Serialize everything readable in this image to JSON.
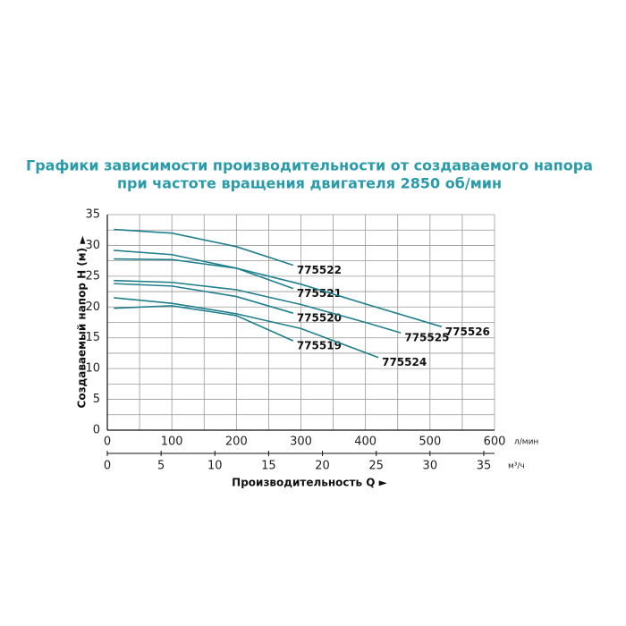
{
  "chart_data": {
    "type": "line",
    "title": "Графики зависимости производительности от создаваемого напора",
    "subtitle": "при частоте вращения двигателя 2850 об/мин",
    "y_label": "Создаваемый напор H (м) ►",
    "x_label": "Производительность Q ►",
    "x_unit": "л/мин",
    "x2_unit": "м³/ч",
    "xlim": [
      0,
      600
    ],
    "xticks": [
      0,
      100,
      200,
      300,
      400,
      500,
      600
    ],
    "x2lim": [
      0,
      36
    ],
    "x2ticks": [
      0,
      5,
      10,
      15,
      20,
      25,
      30,
      35
    ],
    "ylim": [
      0,
      35
    ],
    "yticks": [
      0,
      5,
      10,
      15,
      20,
      25,
      30,
      35
    ],
    "minor_xticks": [
      50,
      150,
      250,
      350,
      450,
      550
    ],
    "minor_yticks": [
      2.5,
      7.5,
      12.5,
      17.5,
      22.5,
      27.5,
      32.5
    ],
    "grid": true,
    "series": [
      {
        "name": "775522",
        "color": "#1f7f8c",
        "x": [
          10,
          100,
          200,
          288
        ],
        "values": [
          32.6,
          32,
          29.8,
          26.8
        ]
      },
      {
        "name": "775521",
        "color": "#1f7f8c",
        "x": [
          10,
          100,
          200,
          288
        ],
        "values": [
          29.2,
          28.5,
          26.3,
          23
        ]
      },
      {
        "name": "775520",
        "color": "#1f7f8c",
        "x": [
          10,
          100,
          200,
          288
        ],
        "values": [
          23.8,
          23.4,
          21.7,
          19
        ]
      },
      {
        "name": "775519",
        "color": "#1f7f8c",
        "x": [
          10,
          100,
          200,
          288
        ],
        "values": [
          19.8,
          20.2,
          18.6,
          14.5
        ]
      },
      {
        "name": "775526",
        "color": "#1f7f8c",
        "x": [
          10,
          100,
          200,
          300,
          400,
          518
        ],
        "values": [
          27.8,
          27.7,
          26.3,
          23.7,
          20.5,
          16.8
        ]
      },
      {
        "name": "775525",
        "color": "#1f7f8c",
        "x": [
          10,
          100,
          200,
          300,
          400,
          455
        ],
        "values": [
          24.3,
          24,
          22.8,
          20.4,
          17.5,
          15.8
        ]
      },
      {
        "name": "775524",
        "color": "#1f7f8c",
        "x": [
          10,
          100,
          200,
          300,
          420
        ],
        "values": [
          21.5,
          20.6,
          18.9,
          16.5,
          11.8
        ]
      }
    ]
  }
}
